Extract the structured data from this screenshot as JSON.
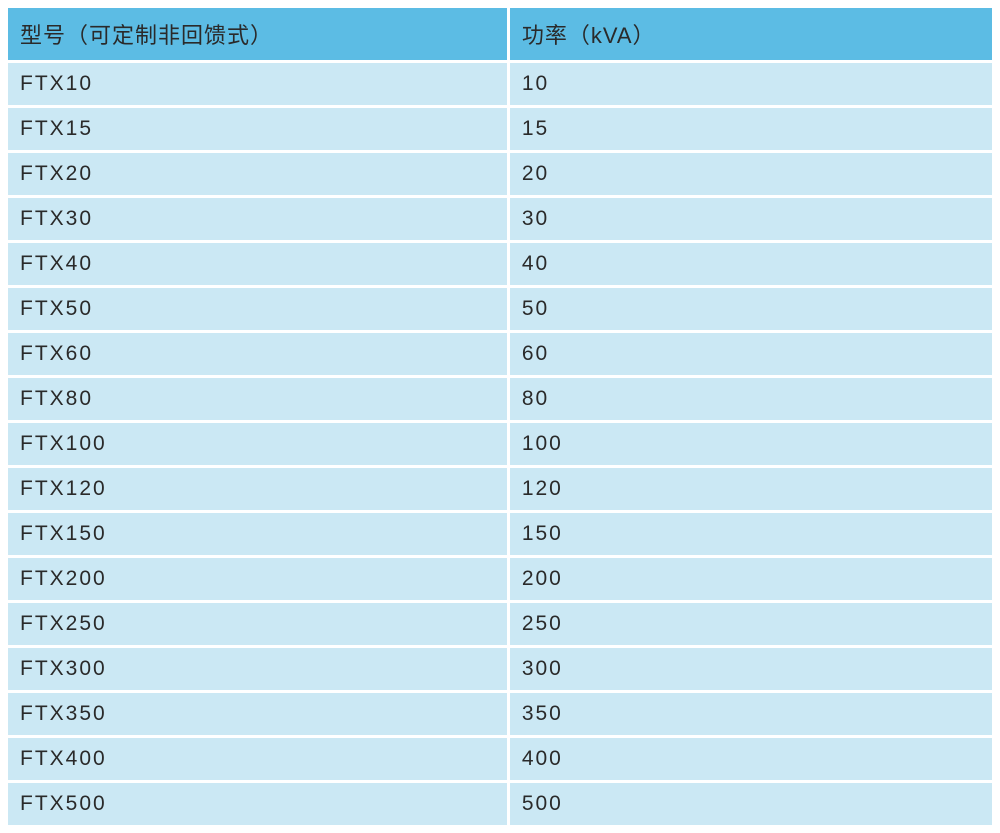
{
  "table": {
    "columns": [
      "型号（可定制非回馈式）",
      "功率（kVA）"
    ],
    "rows": [
      [
        "FTX10",
        "10"
      ],
      [
        "FTX15",
        "15"
      ],
      [
        "FTX20",
        "20"
      ],
      [
        "FTX30",
        "30"
      ],
      [
        "FTX40",
        "40"
      ],
      [
        "FTX50",
        "50"
      ],
      [
        "FTX60",
        "60"
      ],
      [
        "FTX80",
        "80"
      ],
      [
        "FTX100",
        "100"
      ],
      [
        "FTX120",
        "120"
      ],
      [
        "FTX150",
        "150"
      ],
      [
        "FTX200",
        "200"
      ],
      [
        "FTX250",
        "250"
      ],
      [
        "FTX300",
        "300"
      ],
      [
        "FTX350",
        "350"
      ],
      [
        "FTX400",
        "400"
      ],
      [
        "FTX500",
        "500"
      ]
    ],
    "header_bg": "#5cbce4",
    "cell_bg": "#cbe8f4",
    "border_color": "#ffffff",
    "text_color": "#2a2a2a",
    "header_fontsize": 22,
    "cell_fontsize": 21,
    "border_width": 3,
    "col_widths": [
      "51%",
      "49%"
    ]
  }
}
